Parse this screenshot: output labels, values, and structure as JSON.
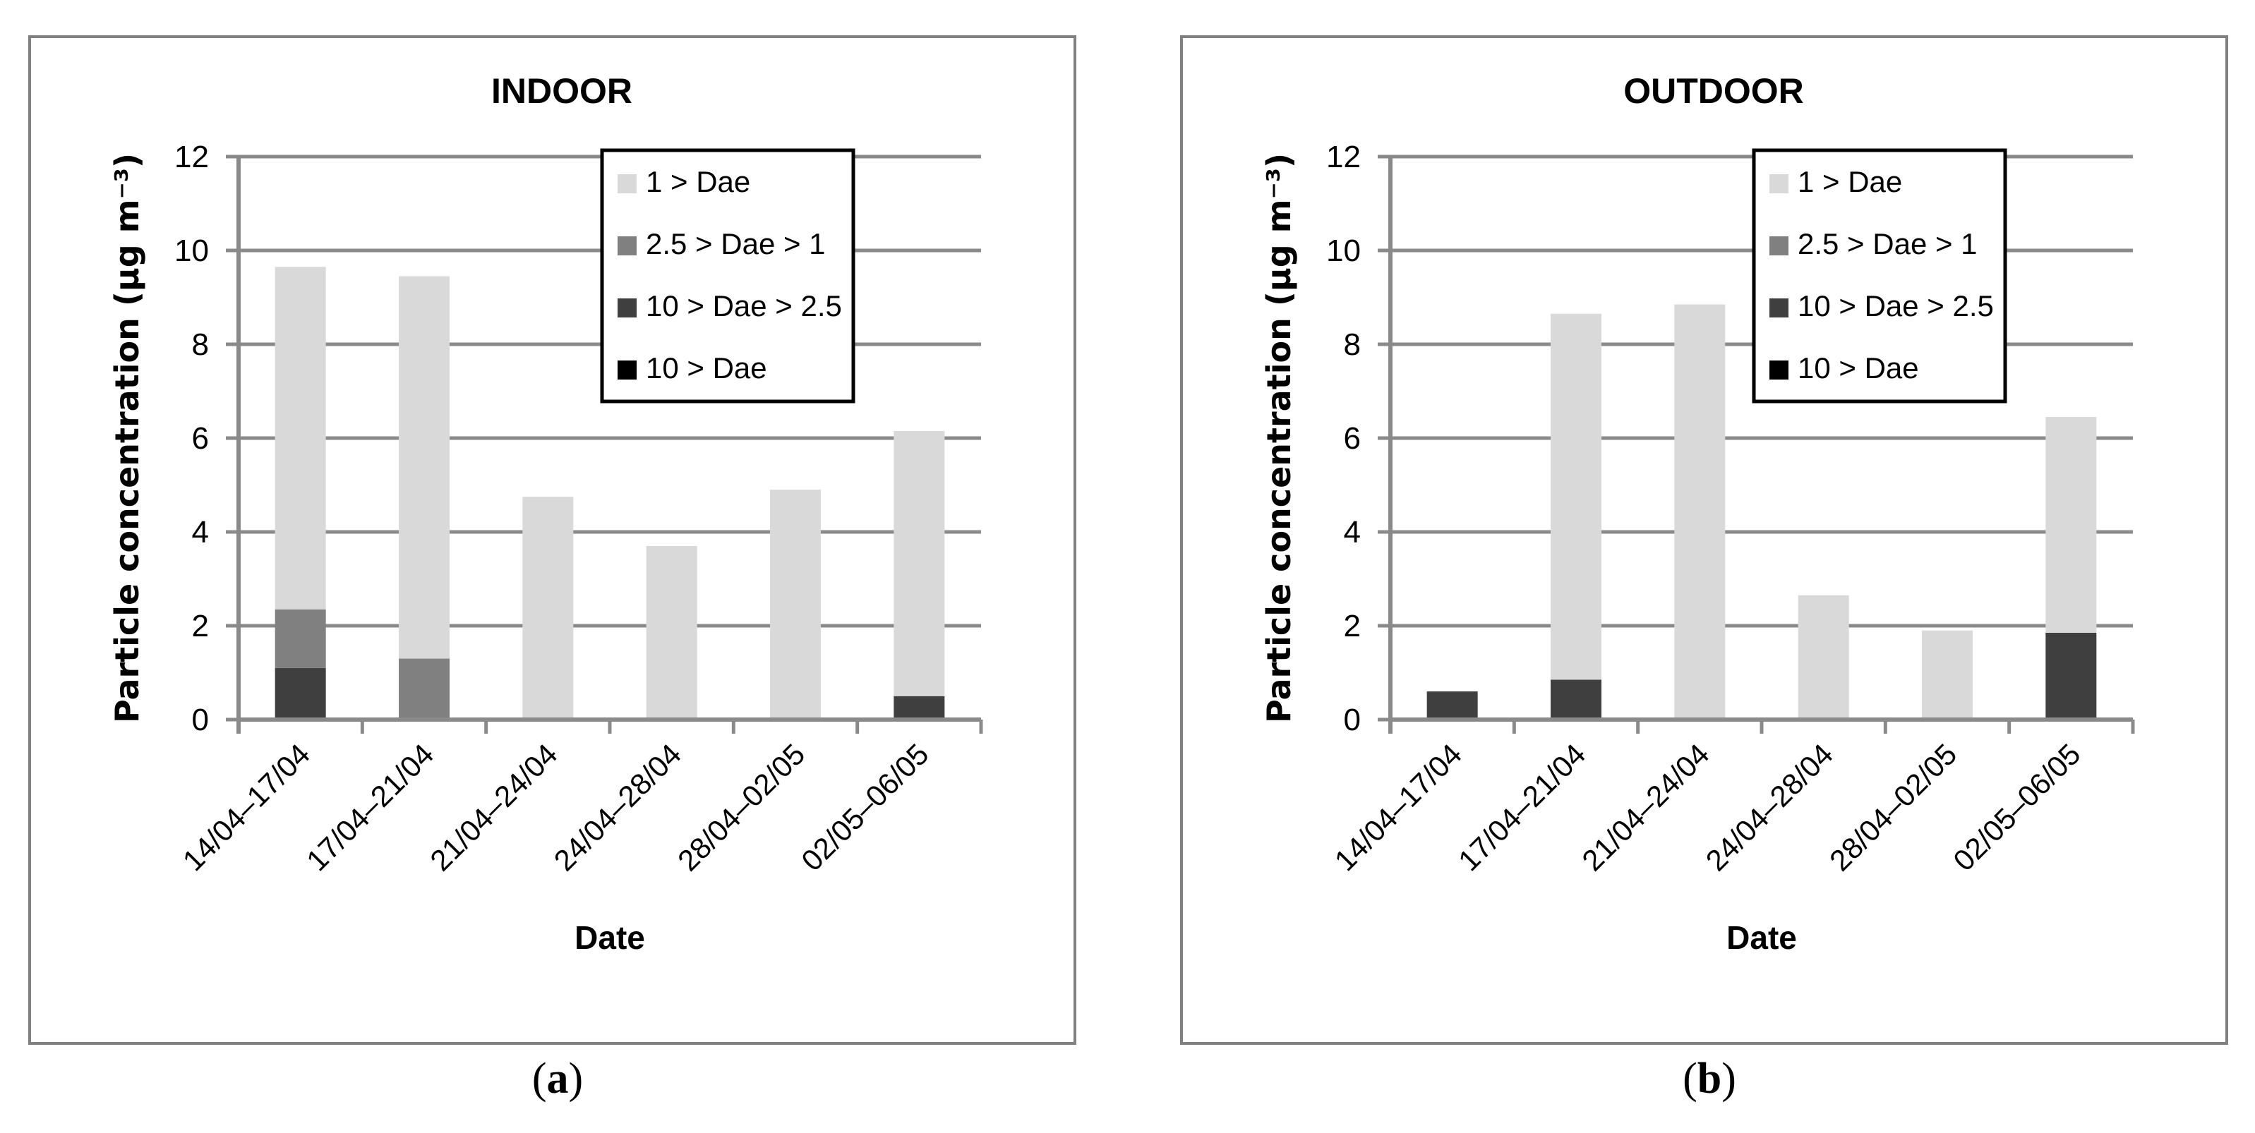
{
  "ui": {
    "colors": {
      "background": "#ffffff",
      "panel_border": "#808080",
      "grid": "#8a8a8a",
      "axis": "#8a8a8a",
      "text": "#000000",
      "legend_border": "#000000",
      "legend_fill": "#ffffff"
    },
    "captions": [
      {
        "pre": "(",
        "label": "a",
        "post": ")"
      },
      {
        "pre": "(",
        "label": "b",
        "post": ")"
      }
    ]
  },
  "chart_data": [
    {
      "type": "bar",
      "stacked": true,
      "title": "INDOOR",
      "xlabel": "Date",
      "ylabel": "Particle concentration (µg m⁻³)",
      "ylim": [
        0,
        12
      ],
      "ytick_step": 2,
      "grid": true,
      "legend_position": "top-right-inside",
      "categories": [
        "14/04–17/04",
        "17/04–21/04",
        "21/04–24/04",
        "24/04–28/04",
        "28/04–02/05",
        "02/05–06/05"
      ],
      "series": [
        {
          "name": "10 > Dae",
          "color": "#000000",
          "values": [
            0,
            0,
            0,
            0,
            0,
            0
          ]
        },
        {
          "name": "10 > Dae > 2.5",
          "color": "#3f3f3f",
          "values": [
            1.1,
            0,
            0,
            0,
            0,
            0.5
          ]
        },
        {
          "name": "2.5 > Dae > 1",
          "color": "#808080",
          "values": [
            1.25,
            1.3,
            0,
            0,
            0,
            0
          ]
        },
        {
          "name": "1 > Dae",
          "color": "#d9d9d9",
          "values": [
            7.3,
            8.15,
            4.75,
            3.7,
            4.9,
            5.65
          ]
        }
      ],
      "totals": [
        9.65,
        9.45,
        4.75,
        3.7,
        4.9,
        6.15
      ],
      "legend": [
        {
          "label": "1 > Dae",
          "color": "#d9d9d9"
        },
        {
          "label": "2.5 > Dae > 1",
          "color": "#808080"
        },
        {
          "label": "10 > Dae > 2.5",
          "color": "#3f3f3f"
        },
        {
          "label": "10 > Dae",
          "color": "#000000"
        }
      ]
    },
    {
      "type": "bar",
      "stacked": true,
      "title": "OUTDOOR",
      "xlabel": "Date",
      "ylabel": "Particle concentration (µg m⁻³)",
      "ylim": [
        0,
        12
      ],
      "ytick_step": 2,
      "grid": true,
      "legend_position": "top-right-inside",
      "categories": [
        "14/04–17/04",
        "17/04–21/04",
        "21/04–24/04",
        "24/04–28/04",
        "28/04–02/05",
        "02/05–06/05"
      ],
      "series": [
        {
          "name": "10 > Dae",
          "color": "#000000",
          "values": [
            0,
            0,
            0,
            0,
            0,
            0
          ]
        },
        {
          "name": "10 > Dae > 2.5",
          "color": "#3f3f3f",
          "values": [
            0.6,
            0.85,
            0,
            0,
            0,
            1.85
          ]
        },
        {
          "name": "2.5 > Dae > 1",
          "color": "#808080",
          "values": [
            0,
            0,
            0,
            0,
            0,
            0
          ]
        },
        {
          "name": "1 > Dae",
          "color": "#d9d9d9",
          "values": [
            0,
            7.8,
            8.85,
            2.65,
            1.9,
            4.6
          ]
        }
      ],
      "totals": [
        0.6,
        8.65,
        8.85,
        2.65,
        1.9,
        6.45
      ],
      "legend": [
        {
          "label": "1 > Dae",
          "color": "#d9d9d9"
        },
        {
          "label": "2.5 > Dae > 1",
          "color": "#808080"
        },
        {
          "label": "10 > Dae > 2.5",
          "color": "#3f3f3f"
        },
        {
          "label": "10 > Dae",
          "color": "#000000"
        }
      ]
    }
  ]
}
